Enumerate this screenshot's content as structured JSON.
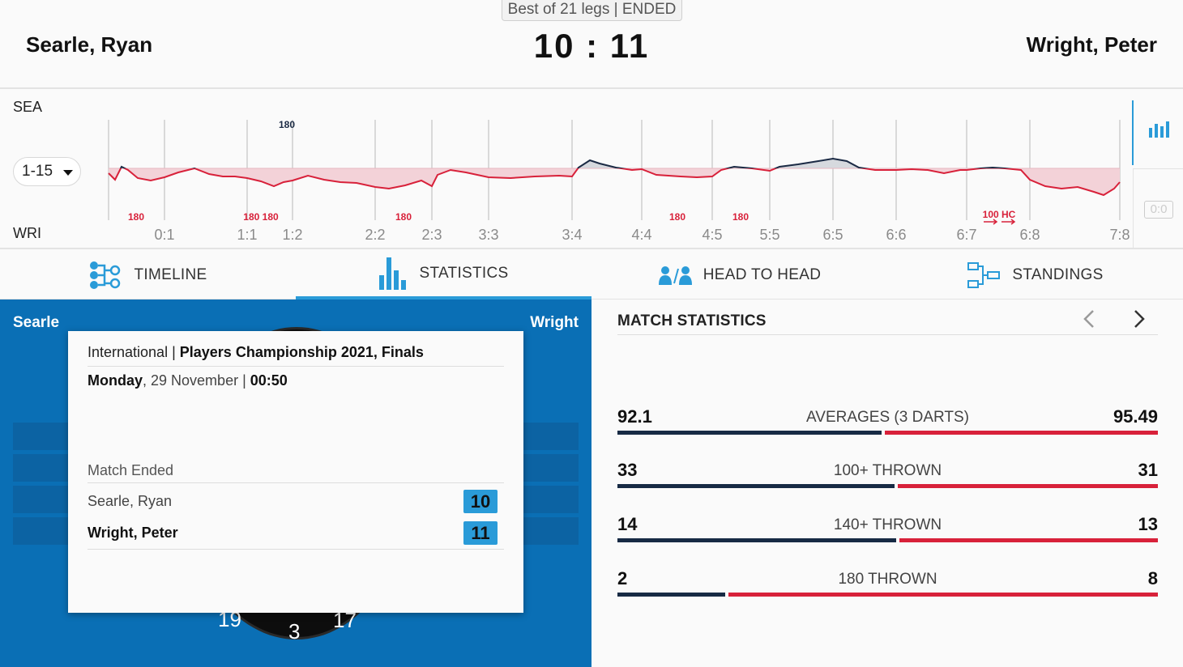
{
  "header": {
    "format": "Best of 21 legs | ENDED",
    "player_left": "Searle, Ryan",
    "player_right": "Wright, Peter",
    "score": "10 : 11"
  },
  "chart": {
    "label_top": "SEA",
    "label_bottom": "WRI",
    "range": "1-15",
    "leg_labels": [
      "0:1",
      "1:1",
      "1:2",
      "2:2",
      "2:3",
      "3:3",
      "3:4",
      "4:4",
      "4:5",
      "5:5",
      "6:5",
      "6:6",
      "6:7",
      "6:8",
      "7:8"
    ],
    "sea_markers": [
      "180"
    ],
    "wri_markers": [
      "180",
      "180 180",
      "180",
      "180",
      "180",
      "100 HC"
    ],
    "mini_score": "0:0",
    "colors": {
      "sea": "#1b2a44",
      "wri": "#d8213a",
      "wri_fill": "#f3d2d8",
      "sea_fill": "#d6d9de"
    }
  },
  "tabs": [
    {
      "label": "TIMELINE",
      "icon": "timeline-icon"
    },
    {
      "label": "STATISTICS",
      "icon": "bar-chart-icon",
      "active": true
    },
    {
      "label": "HEAD TO HEAD",
      "icon": "head-to-head-icon"
    },
    {
      "label": "STANDINGS",
      "icon": "standings-icon"
    }
  ],
  "left_panel": {
    "name_left": "Searle",
    "name_right": "Wright",
    "dart_numbers": [
      "19",
      "3",
      "17"
    ],
    "card": {
      "category": "International",
      "event": "Players Championship 2021, Finals",
      "day": "Monday",
      "date": ", 29 November | ",
      "time": "00:50",
      "status": "Match Ended",
      "players": [
        {
          "name": "Searle, Ryan",
          "score": "10",
          "winner": false
        },
        {
          "name": "Wright, Peter",
          "score": "11",
          "winner": true
        }
      ]
    }
  },
  "match_statistics": {
    "title": "MATCH STATISTICS",
    "prev_icon": "chevron-left-icon",
    "next_icon": "chevron-right-icon",
    "rows": [
      {
        "label": "AVERAGES (3 DARTS)",
        "left": "92.1",
        "right": "95.49",
        "left_value": 92.1,
        "right_value": 95.49
      },
      {
        "label": "100+ THROWN",
        "left": "33",
        "right": "31",
        "left_value": 33,
        "right_value": 31
      },
      {
        "label": "140+ THROWN",
        "left": "14",
        "right": "13",
        "left_value": 14,
        "right_value": 13
      },
      {
        "label": "180 THROWN",
        "left": "2",
        "right": "8",
        "left_value": 2,
        "right_value": 8
      }
    ]
  }
}
